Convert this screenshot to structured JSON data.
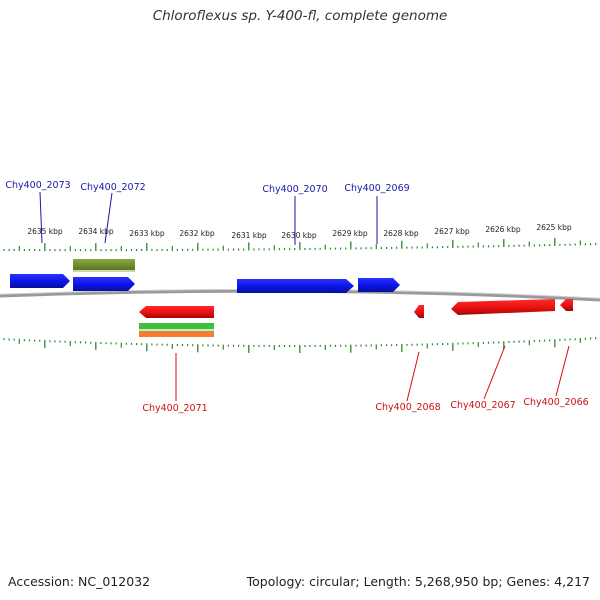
{
  "title": "Chloroflexus sp. Y-400-fl, complete genome",
  "footer": {
    "accession": "Accession: NC_012032",
    "summary": "Topology: circular; Length: 5,268,950 bp; Genes: 4,217"
  },
  "ruler_labels": [
    "2635 kbp",
    "2634 kbp",
    "2633 kbp",
    "2632 kbp",
    "2631 kbp",
    "2630 kbp",
    "2629 kbp",
    "2628 kbp",
    "2627 kbp",
    "2626 kbp",
    "2625 kbp"
  ],
  "gene_labels": {
    "top": [
      "Chy400_2073",
      "Chy400_2072",
      "Chy400_2070",
      "Chy400_2069"
    ],
    "bottom": [
      "Chy400_2071",
      "Chy400_2068",
      "Chy400_2067",
      "Chy400_2066"
    ]
  },
  "colors": {
    "forward_gene": "#0a14e6",
    "reverse_gene": "#ee1111",
    "forward_label": "#1a1aa8",
    "reverse_label": "#cc1111",
    "ruler_ticks": "#2a8a2a",
    "backbone": "#888888",
    "feature_olive": "#6b8a2e",
    "feature_green": "#3fbf3f",
    "feature_orange": "#f08030"
  }
}
